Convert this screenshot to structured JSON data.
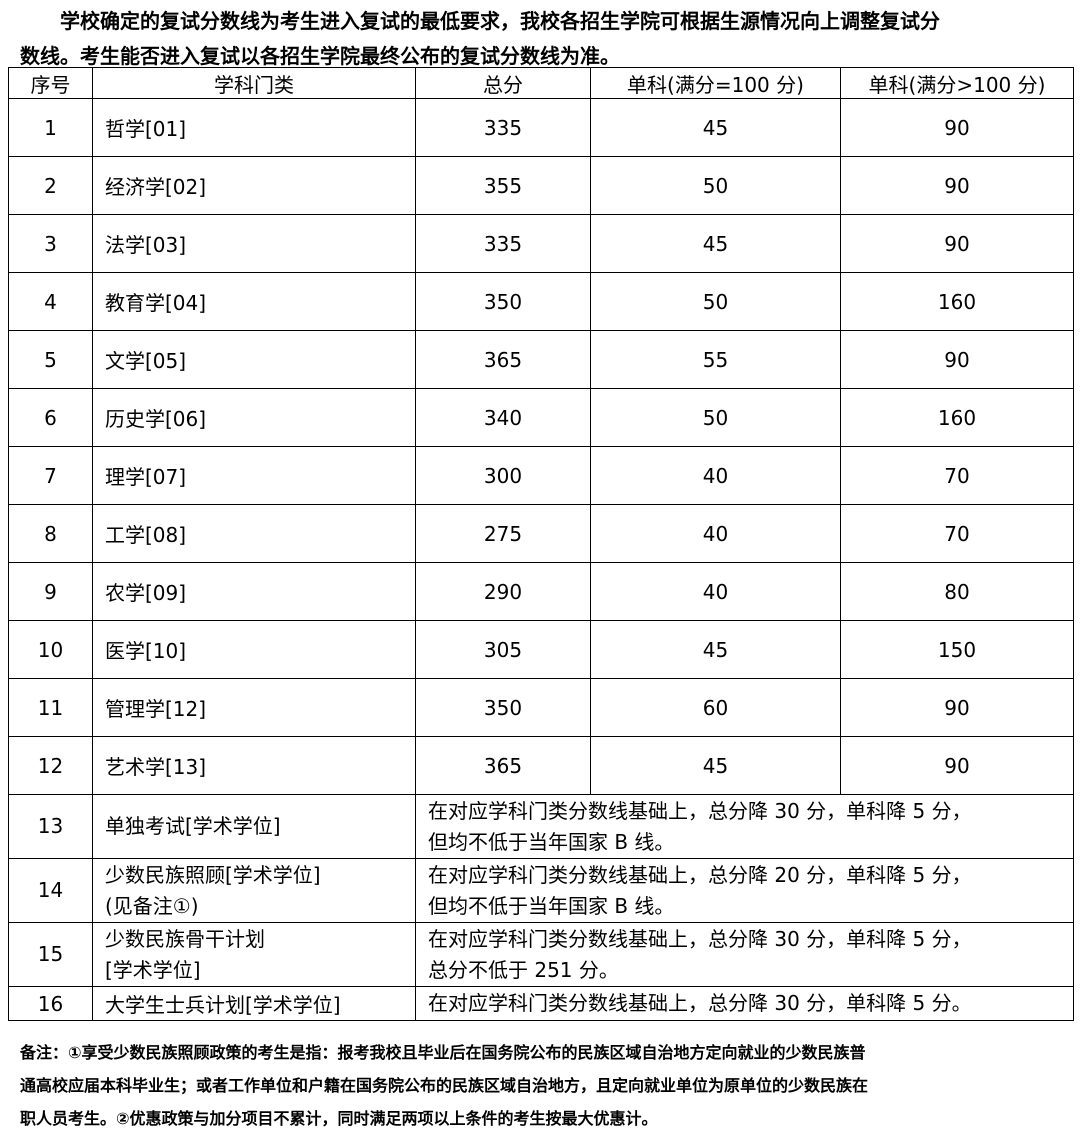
{
  "intro": {
    "line1": "学校确定的复试分数线为考生进入复试的最低要求，我校各招生学院可根据生源情况向上调整复试分",
    "line2": "数线。考生能否进入复试以各招生学院最终公布的复试分数线为准。"
  },
  "table": {
    "headers": [
      "序号",
      "学科门类",
      "总分",
      "单科(满分=100 分)",
      "单科(满分>100 分)"
    ],
    "rows": [
      {
        "no": "1",
        "subject": "哲学[01]",
        "total": "335",
        "single100": "45",
        "singleOver100": "90"
      },
      {
        "no": "2",
        "subject": "经济学[02]",
        "total": "355",
        "single100": "50",
        "singleOver100": "90"
      },
      {
        "no": "3",
        "subject": "法学[03]",
        "total": "335",
        "single100": "45",
        "singleOver100": "90"
      },
      {
        "no": "4",
        "subject": "教育学[04]",
        "total": "350",
        "single100": "50",
        "singleOver100": "160"
      },
      {
        "no": "5",
        "subject": "文学[05]",
        "total": "365",
        "single100": "55",
        "singleOver100": "90"
      },
      {
        "no": "6",
        "subject": "历史学[06]",
        "total": "340",
        "single100": "50",
        "singleOver100": "160"
      },
      {
        "no": "7",
        "subject": "理学[07]",
        "total": "300",
        "single100": "40",
        "singleOver100": "70"
      },
      {
        "no": "8",
        "subject": "工学[08]",
        "total": "275",
        "single100": "40",
        "singleOver100": "70"
      },
      {
        "no": "9",
        "subject": "农学[09]",
        "total": "290",
        "single100": "40",
        "singleOver100": "80"
      },
      {
        "no": "10",
        "subject": "医学[10]",
        "total": "305",
        "single100": "45",
        "singleOver100": "150"
      },
      {
        "no": "11",
        "subject": "管理学[12]",
        "total": "350",
        "single100": "60",
        "singleOver100": "90"
      },
      {
        "no": "12",
        "subject": "艺术学[13]",
        "total": "365",
        "single100": "45",
        "singleOver100": "90"
      }
    ],
    "special_rows": [
      {
        "no": "13",
        "subject_l1": "单独考试[学术学位]",
        "subject_l2": "",
        "desc_l1": "在对应学科门类分数线基础上，总分降 30 分，单科降 5 分，",
        "desc_l2": "但均不低于当年国家 B 线。"
      },
      {
        "no": "14",
        "subject_l1": "少数民族照顾[学术学位]",
        "subject_l2": "(见备注①)",
        "desc_l1": "在对应学科门类分数线基础上，总分降 20 分，单科降 5 分，",
        "desc_l2": "但均不低于当年国家 B 线。"
      },
      {
        "no": "15",
        "subject_l1": "少数民族骨干计划",
        "subject_l2": "[学术学位]",
        "desc_l1": "在对应学科门类分数线基础上，总分降 30 分，单科降 5 分，",
        "desc_l2": "总分不低于 251 分。"
      },
      {
        "no": "16",
        "subject_l1": "大学生士兵计划[学术学位]",
        "subject_l2": "",
        "desc_l1": "在对应学科门类分数线基础上，总分降 30 分，单科降 5 分。",
        "desc_l2": ""
      }
    ]
  },
  "notes": {
    "line1": "备注：①享受少数民族照顾政策的考生是指：报考我校且毕业后在国务院公布的民族区域自治地方定向就业的少数民族普",
    "line2": "通高校应届本科毕业生；或者工作单位和户籍在国务院公布的民族区域自治地方，且定向就业单位为原单位的少数民族在",
    "line3": "职人员考生。②优惠政策与加分项目不累计，同时满足两项以上条件的考生按最大优惠计。"
  }
}
